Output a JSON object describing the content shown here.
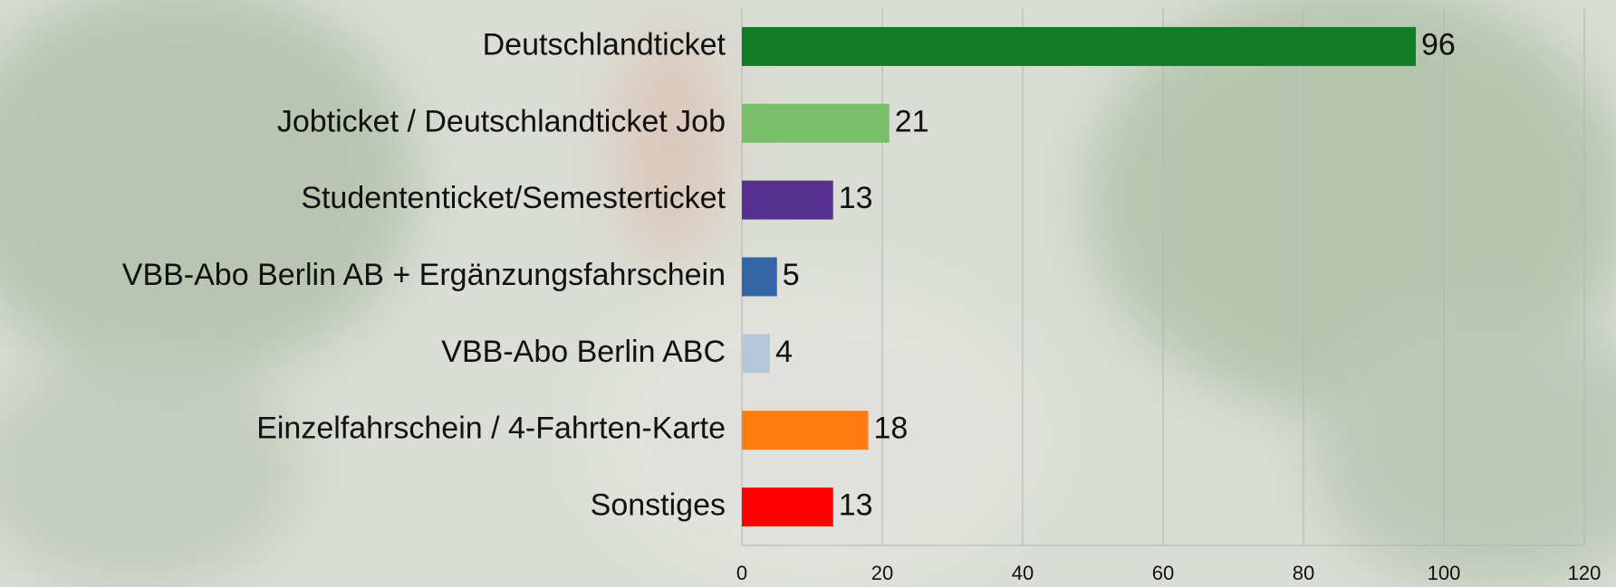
{
  "chart_data": {
    "type": "bar",
    "orientation": "horizontal",
    "categories": [
      "Deutschlandticket",
      "Jobticket / Deutschlandticket Job",
      "Studententicket/Semesterticket",
      "VBB-Abo Berlin AB + Ergänzungsfahrschein",
      "VBB-Abo Berlin ABC",
      "Einzelfahrschein / 4-Fahrten-Karte",
      "Sonstiges"
    ],
    "values": [
      96,
      21,
      13,
      5,
      4,
      18,
      13
    ],
    "colors": [
      "#137a25",
      "#77bf6a",
      "#56318f",
      "#3465a4",
      "#b4c7dc",
      "#ff7b0f",
      "#ff0000"
    ],
    "xlim": [
      0,
      120
    ],
    "xticks": [
      0,
      20,
      40,
      60,
      80,
      100,
      120
    ],
    "grid": true
  }
}
